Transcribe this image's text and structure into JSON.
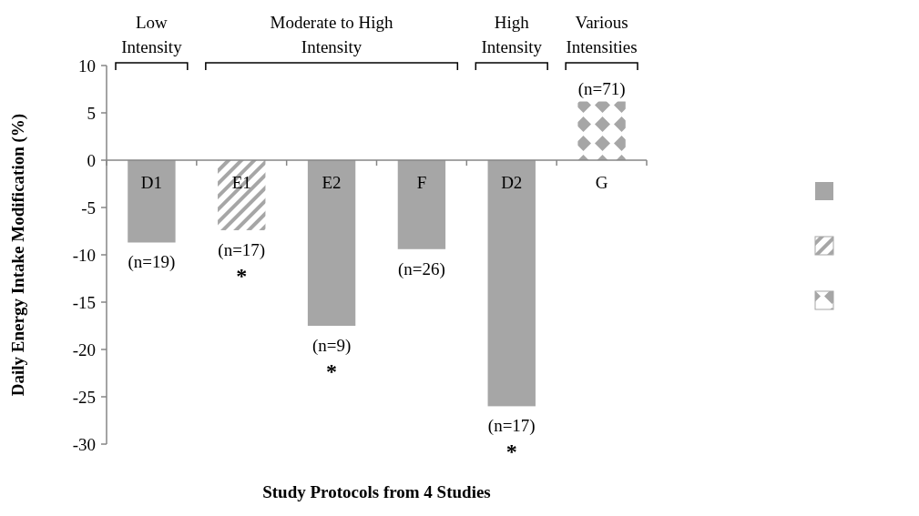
{
  "chart_data": {
    "type": "bar",
    "xlabel": "Study Protocols from 4 Studies",
    "ylabel": "Daily Energy Intake Modification (%)",
    "categories": [
      "D1",
      "E1",
      "E2",
      "F",
      "D2",
      "G"
    ],
    "series": [
      {
        "color": "#a6a6a6",
        "values": [
          -8.7,
          null,
          -17.5,
          -9.4,
          -26,
          null
        ]
      },
      {
        "color": "#a6a6a6",
        "values": [
          null,
          -7.4,
          null,
          null,
          null,
          null
        ]
      },
      {
        "color": "#a6a6a6",
        "values": [
          null,
          null,
          null,
          null,
          null,
          6.2
        ]
      }
    ],
    "ylim": [
      -30,
      10
    ],
    "yticks": [
      -30,
      -25,
      -20,
      -15,
      -10,
      -5,
      0,
      5,
      10
    ],
    "grid": false,
    "annotations": [
      "Low Intensity",
      "Moderate to High Intensity",
      "High Intensity",
      "Various Intensities",
      {
        "text": "(n=19)",
        "x": "D1",
        "y": -8.7
      },
      {
        "text": "(n=17)",
        "x": "E1",
        "y": -7.4
      },
      {
        "text": "*",
        "x": "E1",
        "y": -7.4
      },
      {
        "text": "(n=9)",
        "x": "E2",
        "y": -17.5
      },
      {
        "text": "*",
        "x": "E2",
        "y": -17.5
      },
      {
        "text": "(n=26)",
        "x": "F",
        "y": -9.4
      },
      {
        "text": "(n=17)",
        "x": "D2",
        "y": -26
      },
      {
        "text": "*",
        "x": "D2",
        "y": -26
      },
      {
        "text": "(n=71)",
        "x": "G",
        "y": 6.2
      }
    ]
  }
}
